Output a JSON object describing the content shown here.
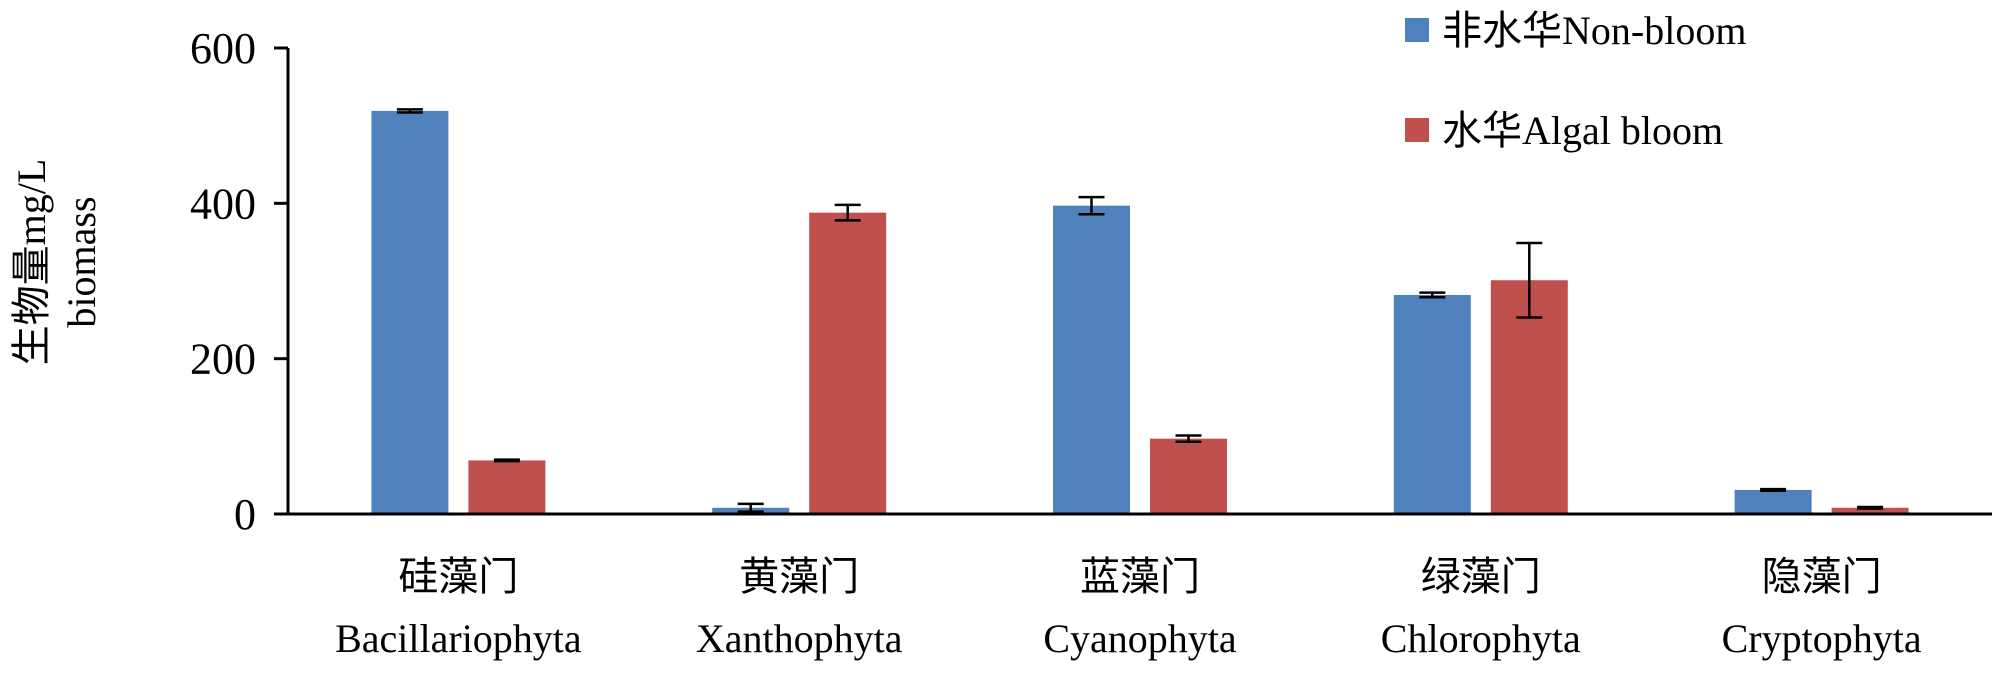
{
  "chart_data": {
    "type": "bar",
    "categories": [
      {
        "zh": "硅藻门",
        "en": "Bacillariophyta"
      },
      {
        "zh": "黄藻门",
        "en": "Xanthophyta"
      },
      {
        "zh": "蓝藻门",
        "en": "Cyanophyta"
      },
      {
        "zh": "绿藻门",
        "en": "Chlorophyta"
      },
      {
        "zh": "隐藻门",
        "en": "Cryptophyta"
      }
    ],
    "series": [
      {
        "name": "非水华Non-bloom",
        "color": "#4f81bd",
        "values": [
          519,
          8,
          397,
          282,
          31
        ],
        "errors": [
          2,
          5,
          11,
          3,
          1
        ]
      },
      {
        "name": "水华Algal bloom",
        "color": "#c0504d",
        "values": [
          69,
          388,
          97,
          301,
          8
        ],
        "errors": [
          1,
          10,
          4,
          48,
          1
        ]
      }
    ],
    "ylabel": "生物量mg/L",
    "ylabel_en": "biomass",
    "ylim": [
      0,
      600
    ],
    "yticks": [
      "0",
      "200",
      "400",
      "600"
    ],
    "grid": false,
    "legend_position": "top-right"
  }
}
